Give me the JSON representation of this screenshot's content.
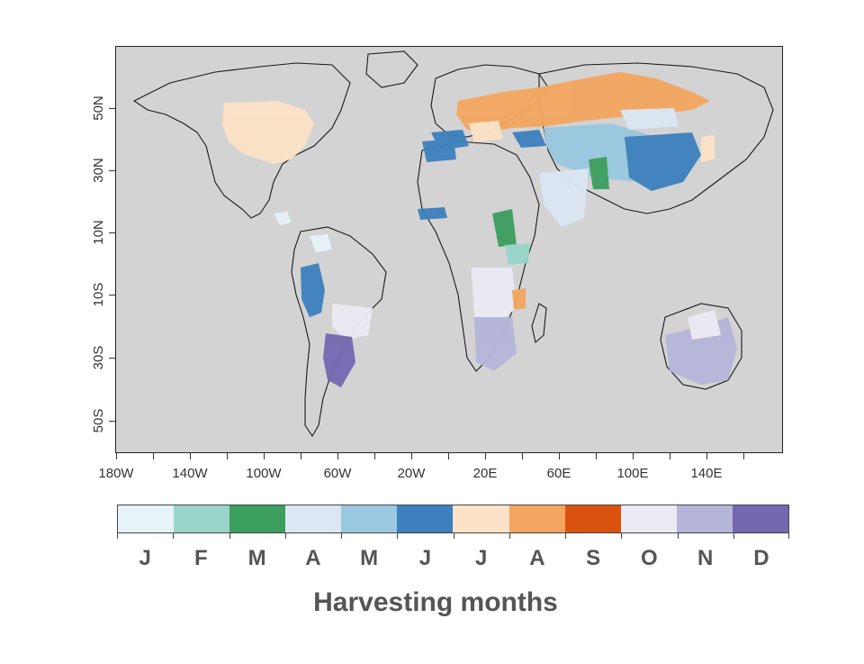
{
  "legend": {
    "title": "Harvesting months",
    "months": [
      {
        "label": "J",
        "color": "#e6f3f8"
      },
      {
        "label": "F",
        "color": "#99d5c9"
      },
      {
        "label": "M",
        "color": "#3c9e5f"
      },
      {
        "label": "A",
        "color": "#dbe7f3"
      },
      {
        "label": "M",
        "color": "#9ac8e0"
      },
      {
        "label": "J",
        "color": "#3d80bd"
      },
      {
        "label": "J",
        "color": "#fce2c6"
      },
      {
        "label": "A",
        "color": "#f4a660"
      },
      {
        "label": "S",
        "color": "#d9530f"
      },
      {
        "label": "O",
        "color": "#ecebf4"
      },
      {
        "label": "N",
        "color": "#b5b5d9"
      },
      {
        "label": "D",
        "color": "#7468b1"
      }
    ]
  },
  "axes": {
    "y_labels": [
      "50N",
      "30N",
      "10N",
      "10S",
      "30S",
      "50S"
    ],
    "x_labels": [
      "180W",
      "140W",
      "100W",
      "60W",
      "20W",
      "20E",
      "60E",
      "100E",
      "140E"
    ]
  },
  "colors": {
    "ocean": "#d3d3d3",
    "coast": "#1a1a1a"
  }
}
